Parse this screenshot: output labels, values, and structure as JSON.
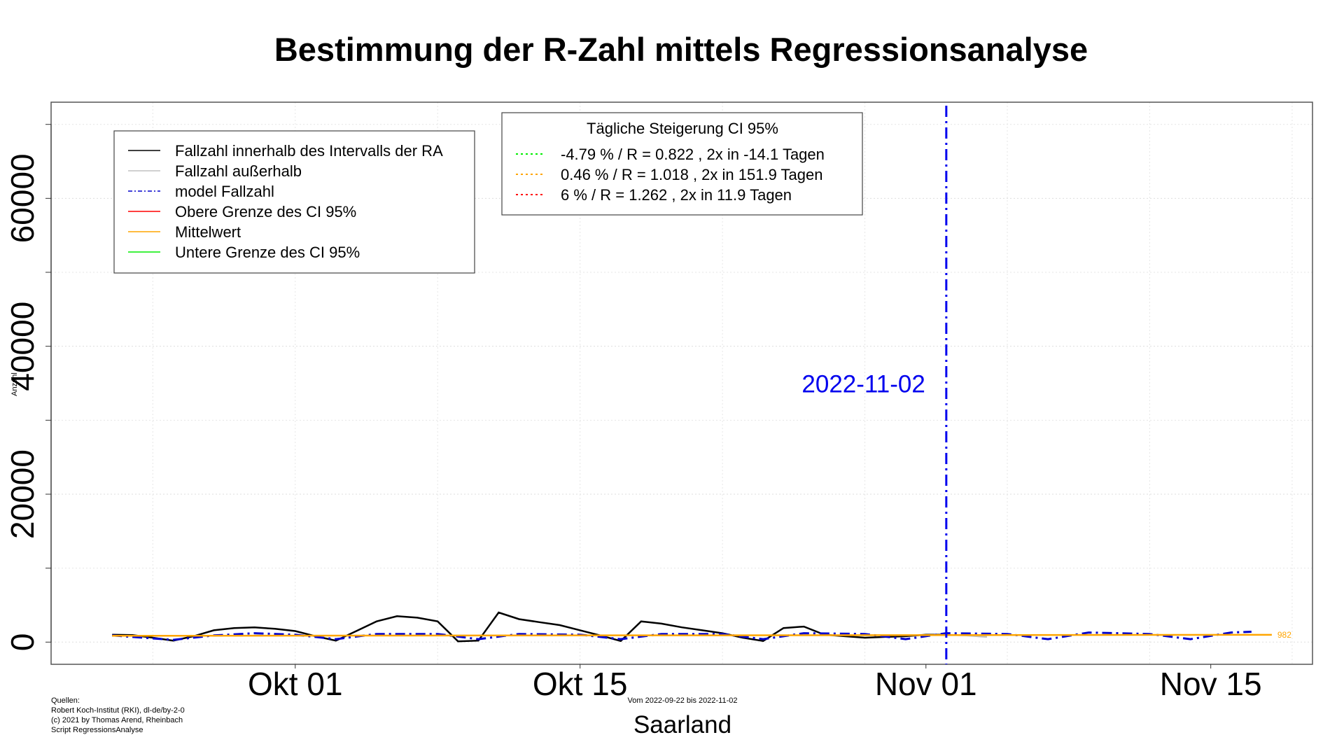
{
  "chart_data": {
    "type": "line",
    "title": "Bestimmung der R-Zahl mittels Regressionsanalyse",
    "subtitle": "Vom 2022-09-22 bis 2022-11-02",
    "region": "Saarland",
    "ylabel": "Anzahl",
    "xlim": [
      "2022-09-19",
      "2022-11-20"
    ],
    "ylim": [
      -3000,
      73000
    ],
    "x_ticks": [
      {
        "date": "2022-10-01",
        "label": "Okt 01"
      },
      {
        "date": "2022-10-15",
        "label": "Okt 15"
      },
      {
        "date": "2022-11-01",
        "label": "Nov 01"
      },
      {
        "date": "2022-11-15",
        "label": "Nov 15"
      }
    ],
    "y_ticks": [
      {
        "value": 0,
        "label": "0"
      },
      {
        "value": 20000,
        "label": "20000"
      },
      {
        "value": 40000,
        "label": "40000"
      },
      {
        "value": 60000,
        "label": "60000"
      }
    ],
    "grid": true,
    "vline": {
      "date": "2022-11-02",
      "label": "2022-11-02",
      "color": "#0000ee"
    },
    "end_label": {
      "text": "982",
      "color": "#ffa500"
    },
    "series": [
      {
        "name": "Fallzahl innerhalb des Intervalls der RA",
        "color": "#000000",
        "style": "solid",
        "points": [
          [
            "2022-09-22",
            1000
          ],
          [
            "2022-09-23",
            950
          ],
          [
            "2022-09-24",
            600
          ],
          [
            "2022-09-25",
            200
          ],
          [
            "2022-09-26",
            800
          ],
          [
            "2022-09-27",
            1600
          ],
          [
            "2022-09-28",
            1900
          ],
          [
            "2022-09-29",
            2000
          ],
          [
            "2022-09-30",
            1800
          ],
          [
            "2022-10-01",
            1500
          ],
          [
            "2022-10-02",
            800
          ],
          [
            "2022-10-03",
            200
          ],
          [
            "2022-10-04",
            1500
          ],
          [
            "2022-10-05",
            2800
          ],
          [
            "2022-10-06",
            3500
          ],
          [
            "2022-10-07",
            3300
          ],
          [
            "2022-10-08",
            2800
          ],
          [
            "2022-10-09",
            100
          ],
          [
            "2022-10-10",
            200
          ],
          [
            "2022-10-11",
            4000
          ],
          [
            "2022-10-12",
            3100
          ],
          [
            "2022-10-13",
            2700
          ],
          [
            "2022-10-14",
            2300
          ],
          [
            "2022-10-15",
            1600
          ],
          [
            "2022-10-16",
            900
          ],
          [
            "2022-10-17",
            150
          ],
          [
            "2022-10-18",
            2800
          ],
          [
            "2022-10-19",
            2500
          ],
          [
            "2022-10-20",
            2000
          ],
          [
            "2022-10-21",
            1600
          ],
          [
            "2022-10-22",
            1200
          ],
          [
            "2022-10-23",
            600
          ],
          [
            "2022-10-24",
            150
          ],
          [
            "2022-10-25",
            1900
          ],
          [
            "2022-10-26",
            2100
          ],
          [
            "2022-10-27",
            1000
          ],
          [
            "2022-10-28",
            800
          ],
          [
            "2022-10-29",
            600
          ],
          [
            "2022-10-30",
            700
          ],
          [
            "2022-10-31",
            800
          ],
          [
            "2022-11-01",
            1000
          ],
          [
            "2022-11-02",
            1000
          ]
        ]
      },
      {
        "name": "Fallzahl außerhalb",
        "color": "#c0c0c0",
        "style": "solid",
        "points": [
          [
            "2022-11-02",
            1000
          ],
          [
            "2022-11-03",
            900
          ],
          [
            "2022-11-04",
            700
          ]
        ]
      },
      {
        "name": "model Fallzahl",
        "color": "#0000cc",
        "style": "dashdot",
        "points": [
          [
            "2022-09-22",
            900
          ],
          [
            "2022-09-25",
            300
          ],
          [
            "2022-09-27",
            900
          ],
          [
            "2022-09-29",
            1200
          ],
          [
            "2022-10-01",
            1000
          ],
          [
            "2022-10-03",
            400
          ],
          [
            "2022-10-05",
            1100
          ],
          [
            "2022-10-08",
            1100
          ],
          [
            "2022-10-10",
            400
          ],
          [
            "2022-10-12",
            1100
          ],
          [
            "2022-10-15",
            1000
          ],
          [
            "2022-10-17",
            400
          ],
          [
            "2022-10-19",
            1100
          ],
          [
            "2022-10-22",
            1100
          ],
          [
            "2022-10-24",
            400
          ],
          [
            "2022-10-26",
            1200
          ],
          [
            "2022-10-29",
            1100
          ],
          [
            "2022-10-31",
            400
          ],
          [
            "2022-11-02",
            1200
          ],
          [
            "2022-11-05",
            1100
          ],
          [
            "2022-11-07",
            400
          ],
          [
            "2022-11-09",
            1300
          ],
          [
            "2022-11-12",
            1100
          ],
          [
            "2022-11-14",
            400
          ],
          [
            "2022-11-16",
            1300
          ],
          [
            "2022-11-17",
            1400
          ]
        ]
      },
      {
        "name": "Obere Grenze des CI 95%",
        "color": "#ff0000",
        "style": "solid",
        "points": []
      },
      {
        "name": "Mittelwert",
        "color": "#ffa500",
        "style": "solid",
        "points": [
          [
            "2022-09-22",
            850
          ],
          [
            "2022-11-18",
            982
          ]
        ]
      },
      {
        "name": "Untere Grenze des CI 95%",
        "color": "#00ee00",
        "style": "solid",
        "points": []
      }
    ],
    "legend": {
      "position": "top-left",
      "items": [
        {
          "label": "Fallzahl innerhalb des Intervalls der RA",
          "color": "#000000",
          "style": "solid"
        },
        {
          "label": "Fallzahl außerhalb",
          "color": "#c0c0c0",
          "style": "solid"
        },
        {
          "label": "model Fallzahl",
          "color": "#0000cc",
          "style": "dashdot"
        },
        {
          "label": "Obere Grenze des CI 95%",
          "color": "#ff0000",
          "style": "solid"
        },
        {
          "label": "Mittelwert",
          "color": "#ffa500",
          "style": "solid"
        },
        {
          "label": "Untere Grenze des CI 95%",
          "color": "#00ee00",
          "style": "solid"
        }
      ]
    },
    "ci_legend": {
      "position": "top-center",
      "title": "Tägliche Steigerung CI  95%",
      "items": [
        {
          "label": "-4.79 % / R = 0.822 , 2x in -14.1 Tagen",
          "color": "#00ee00"
        },
        {
          "label": "0.46 % / R = 1.018 , 2x in 151.9 Tagen",
          "color": "#ffa500"
        },
        {
          "label": "6 % / R = 1.262 , 2x in 11.9 Tagen",
          "color": "#ff0000"
        }
      ]
    }
  },
  "footer": {
    "sources": [
      "Quellen:",
      "Robert Koch-Institut (RKI), dl-de/by-2-0",
      "(c) 2021 by Thomas Arend, Rheinbach",
      "Script RegressionsAnalyse"
    ]
  }
}
